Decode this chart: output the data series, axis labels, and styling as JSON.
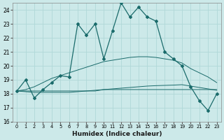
{
  "xlabel": "Humidex (Indice chaleur)",
  "xlim": [
    -0.5,
    23.5
  ],
  "ylim": [
    16,
    24.5
  ],
  "yticks": [
    16,
    17,
    18,
    19,
    20,
    21,
    22,
    23,
    24
  ],
  "xticks": [
    0,
    1,
    2,
    3,
    4,
    5,
    6,
    7,
    8,
    9,
    10,
    11,
    12,
    13,
    14,
    15,
    16,
    17,
    18,
    19,
    20,
    21,
    22,
    23
  ],
  "bg_color": "#cce9e9",
  "grid_color": "#b0d8d8",
  "line_color": "#1a6b6b",
  "humidex": [
    18.2,
    19.0,
    17.7,
    18.3,
    18.8,
    19.3,
    19.2,
    23.0,
    22.2,
    23.0,
    20.5,
    22.5,
    24.5,
    23.5,
    24.2,
    23.5,
    23.2,
    21.0,
    20.5,
    20.0,
    18.5,
    17.5,
    16.8,
    18.0
  ],
  "line2": [
    18.2,
    18.2,
    18.2,
    18.2,
    18.2,
    18.2,
    18.2,
    18.2,
    18.2,
    18.2,
    18.3,
    18.3,
    18.3,
    18.3,
    18.3,
    18.3,
    18.3,
    18.3,
    18.3,
    18.3,
    18.3,
    18.3,
    18.3,
    18.3
  ],
  "line3": [
    18.2,
    18.15,
    18.1,
    18.1,
    18.1,
    18.1,
    18.1,
    18.15,
    18.2,
    18.25,
    18.3,
    18.35,
    18.4,
    18.45,
    18.5,
    18.55,
    18.58,
    18.6,
    18.62,
    18.65,
    18.55,
    18.45,
    18.35,
    18.25
  ],
  "line4": [
    18.2,
    18.3,
    18.5,
    18.8,
    19.1,
    19.3,
    19.5,
    19.7,
    19.9,
    20.1,
    20.3,
    20.4,
    20.5,
    20.6,
    20.65,
    20.65,
    20.6,
    20.5,
    20.4,
    20.2,
    19.8,
    19.5,
    19.2,
    18.8
  ]
}
